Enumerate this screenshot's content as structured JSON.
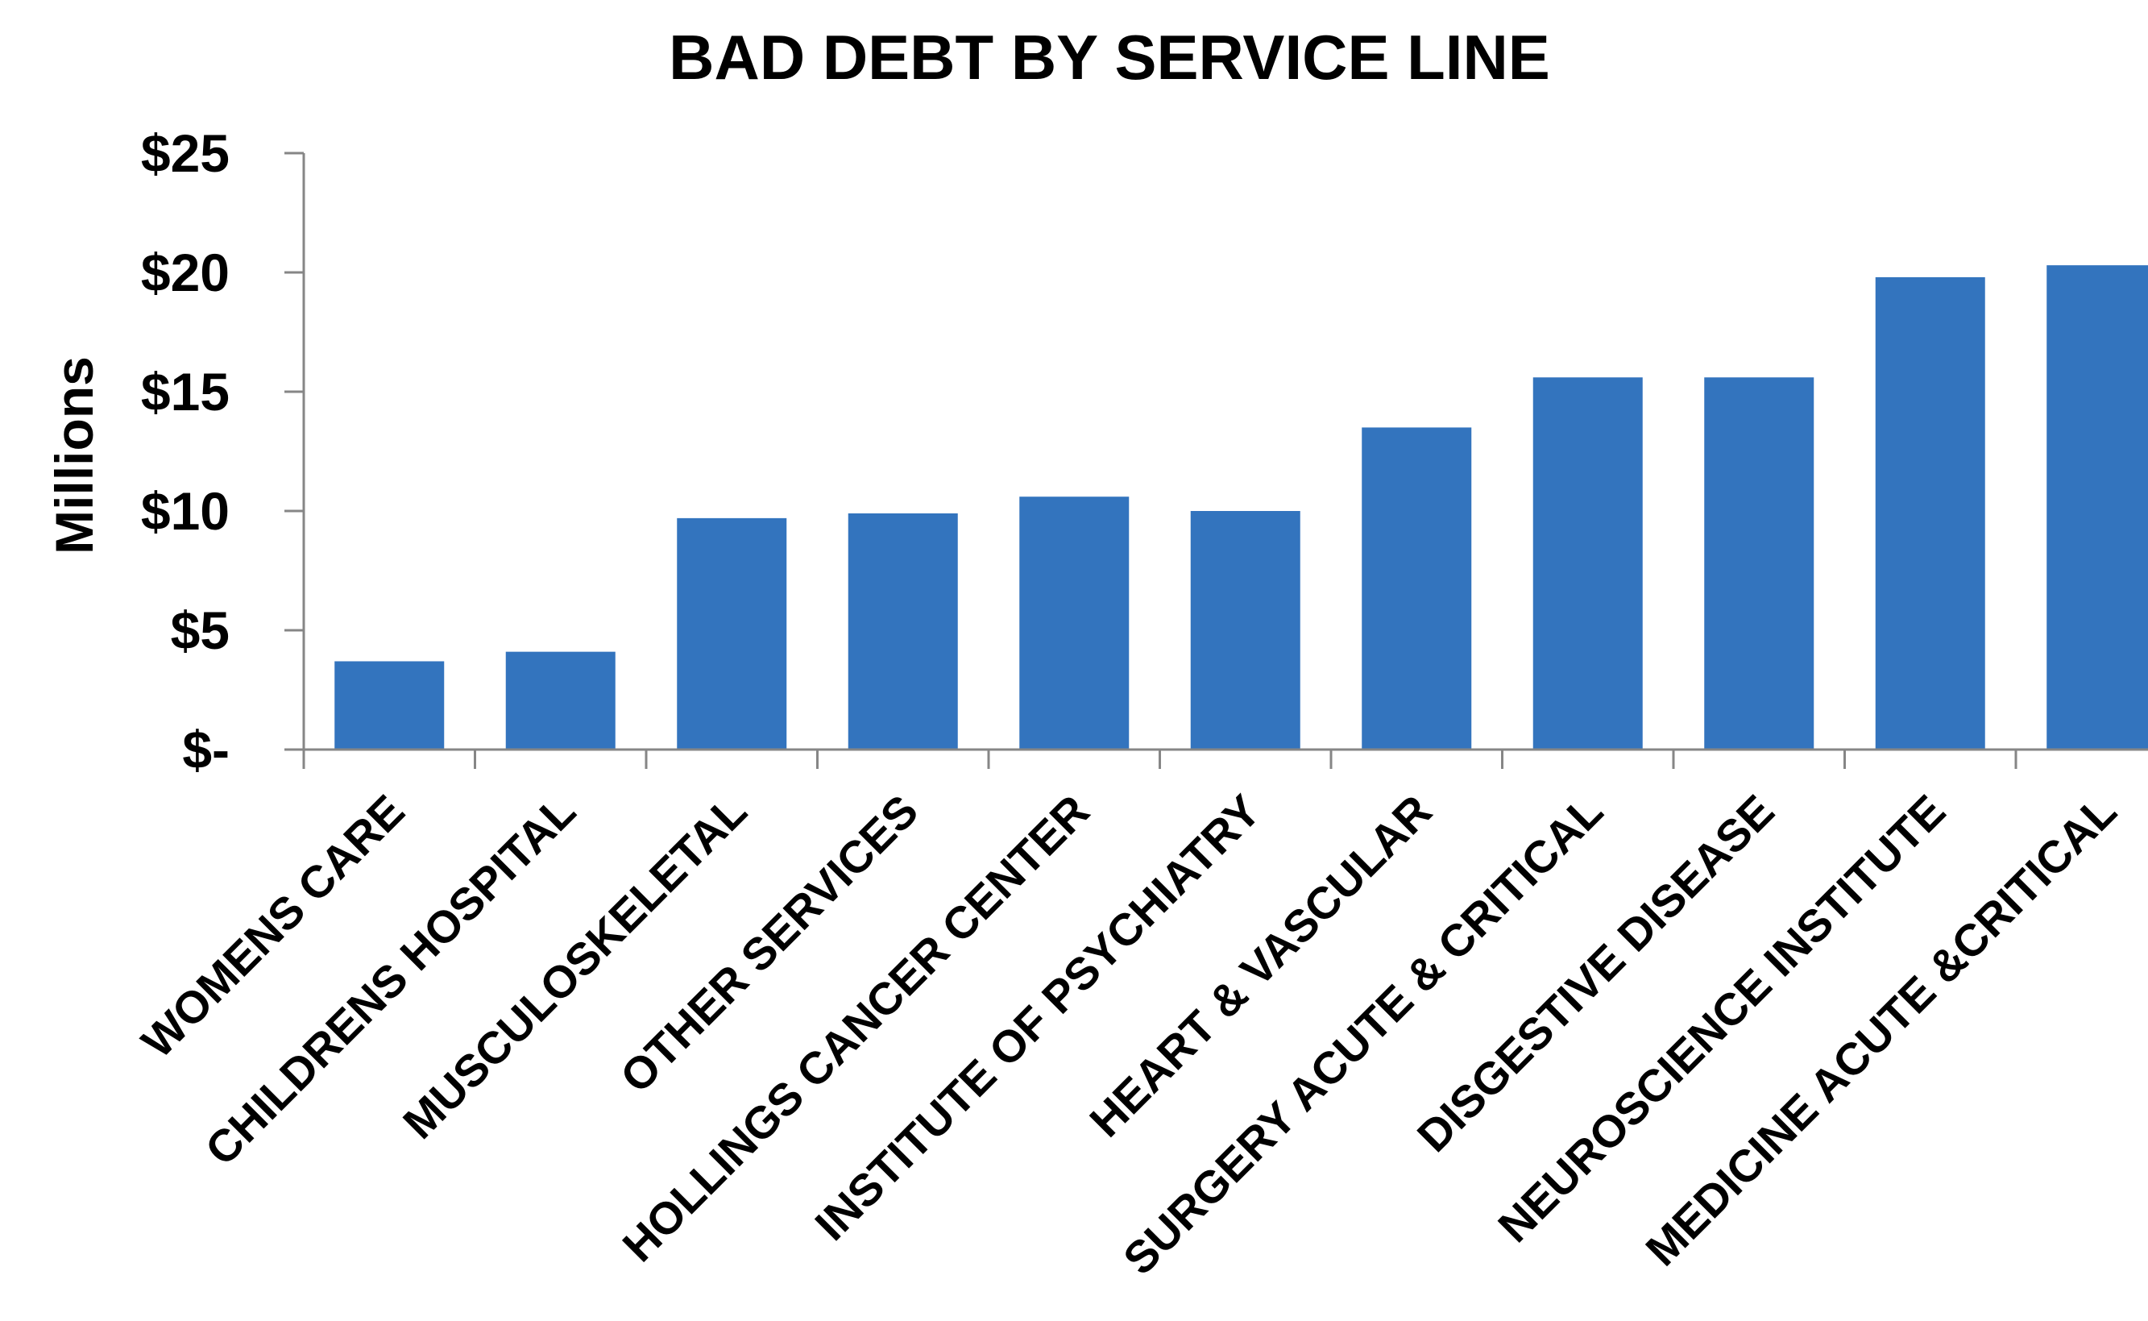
{
  "chart_data": {
    "type": "bar",
    "title": "BAD DEBT BY SERVICE LINE",
    "xlabel": "",
    "ylabel": "Millions",
    "ylim": [
      0,
      25
    ],
    "yticks": [
      0,
      5,
      10,
      15,
      20,
      25
    ],
    "ytick_labels": [
      "$-",
      "$5",
      "$10",
      "$15",
      "$20",
      "$25"
    ],
    "grid": false,
    "legend": "none",
    "bar_color": "#3374BE",
    "categories": [
      "WOMENS CARE",
      "CHILDRENS HOSPITAL",
      "MUSCULOSKELETAL",
      "OTHER SERVICES",
      "HOLLINGS CANCER CENTER",
      "INSTITUTE OF PSYCHIATRY",
      "HEART & VASCULAR",
      "SURGERY ACUTE & CRITICAL",
      "DISGESTIVE DISEASE",
      "NEUROSCIENCE INSTITUTE",
      "MEDICINE ACUTE &CRITICAL"
    ],
    "values": [
      3.7,
      4.1,
      9.7,
      9.9,
      10.6,
      10.0,
      13.5,
      15.6,
      15.6,
      19.8,
      20.3
    ]
  }
}
